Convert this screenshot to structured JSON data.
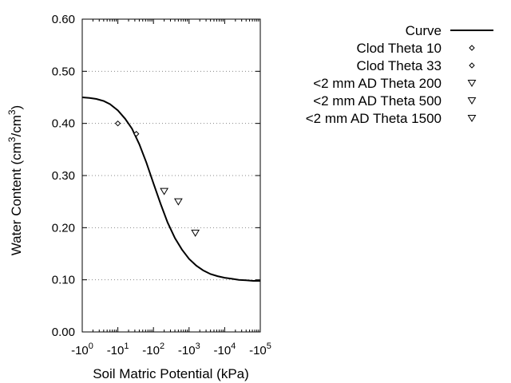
{
  "chart_data": {
    "type": "scatter",
    "title": "",
    "xlabel": "Soil Matric Potential (kPa)",
    "ylabel": {
      "prefix": "Water Content (cm",
      "sup1": "3",
      "mid": "/cm",
      "sup2": "3",
      "suffix": ")"
    },
    "x_scale": "log-negative",
    "xlim": [
      -1,
      -100000
    ],
    "ylim": [
      0,
      0.6
    ],
    "grid": "horizontal-dotted",
    "legend_position": "top-right",
    "x_ticks": [
      {
        "value": -1,
        "base": "-10",
        "exp": "0"
      },
      {
        "value": -10,
        "base": "-10",
        "exp": "1"
      },
      {
        "value": -100,
        "base": "-10",
        "exp": "2"
      },
      {
        "value": -1000,
        "base": "-10",
        "exp": "3"
      },
      {
        "value": -10000,
        "base": "-10",
        "exp": "4"
      },
      {
        "value": -100000,
        "base": "-10",
        "exp": "5"
      }
    ],
    "y_ticks": [
      {
        "value": 0.0,
        "label": "0.00"
      },
      {
        "value": 0.1,
        "label": "0.10"
      },
      {
        "value": 0.2,
        "label": "0.20"
      },
      {
        "value": 0.3,
        "label": "0.30"
      },
      {
        "value": 0.4,
        "label": "0.40"
      },
      {
        "value": 0.5,
        "label": "0.50"
      },
      {
        "value": 0.6,
        "label": "0.60"
      }
    ],
    "curve": {
      "name": "Curve",
      "color": "#000000",
      "points": [
        {
          "x": -1,
          "y": 0.45
        },
        {
          "x": -1.6,
          "y": 0.449
        },
        {
          "x": -2.5,
          "y": 0.447
        },
        {
          "x": -4,
          "y": 0.443
        },
        {
          "x": -6,
          "y": 0.437
        },
        {
          "x": -10,
          "y": 0.425
        },
        {
          "x": -16,
          "y": 0.409
        },
        {
          "x": -25,
          "y": 0.39
        },
        {
          "x": -40,
          "y": 0.36
        },
        {
          "x": -63,
          "y": 0.325
        },
        {
          "x": -100,
          "y": 0.285
        },
        {
          "x": -160,
          "y": 0.245
        },
        {
          "x": -250,
          "y": 0.21
        },
        {
          "x": -400,
          "y": 0.18
        },
        {
          "x": -630,
          "y": 0.158
        },
        {
          "x": -1000,
          "y": 0.14
        },
        {
          "x": -1600,
          "y": 0.127
        },
        {
          "x": -2500,
          "y": 0.118
        },
        {
          "x": -4000,
          "y": 0.111
        },
        {
          "x": -6300,
          "y": 0.107
        },
        {
          "x": -10000,
          "y": 0.104
        },
        {
          "x": -16000,
          "y": 0.102
        },
        {
          "x": -25000,
          "y": 0.1
        },
        {
          "x": -40000,
          "y": 0.099
        },
        {
          "x": -63000,
          "y": 0.098
        },
        {
          "x": -100000,
          "y": 0.098
        }
      ]
    },
    "series": [
      {
        "name": "Clod Theta 10",
        "marker": "diamond",
        "points": [
          {
            "x": -10,
            "y": 0.4
          }
        ]
      },
      {
        "name": "Clod Theta 33",
        "marker": "diamond",
        "points": [
          {
            "x": -33,
            "y": 0.38
          }
        ]
      },
      {
        "name": "<2 mm AD Theta 200",
        "marker": "triangle-down",
        "points": [
          {
            "x": -200,
            "y": 0.27
          }
        ]
      },
      {
        "name": "<2 mm AD Theta 500",
        "marker": "triangle-down",
        "points": [
          {
            "x": -500,
            "y": 0.25
          }
        ]
      },
      {
        "name": "<2 mm AD Theta 1500",
        "marker": "triangle-down",
        "points": [
          {
            "x": -1500,
            "y": 0.19
          }
        ]
      }
    ]
  }
}
